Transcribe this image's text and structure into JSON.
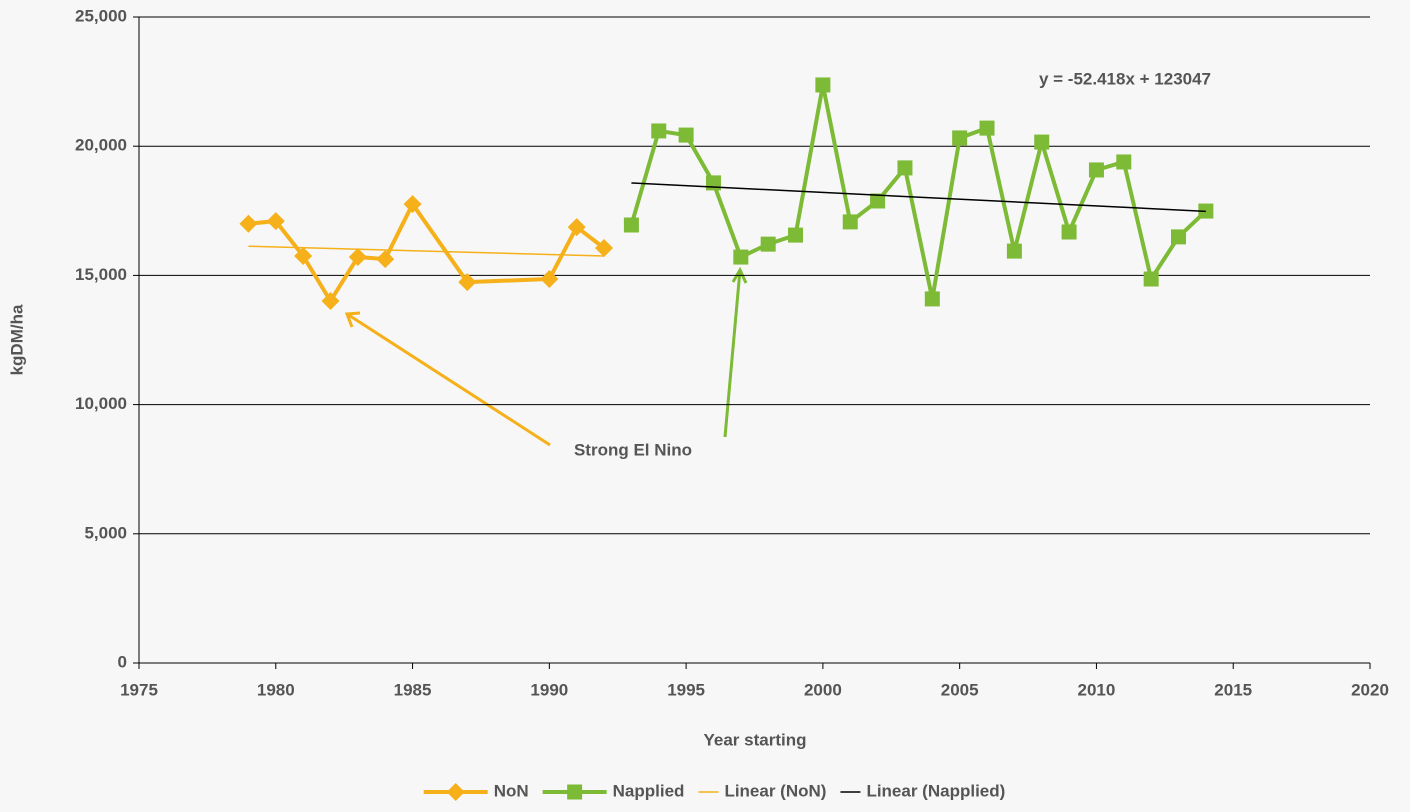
{
  "chart_data": {
    "type": "line",
    "x_label": "Year starting",
    "y_label": "kgDM/ha",
    "xlim": [
      1975,
      2020
    ],
    "ylim": [
      0,
      25000
    ],
    "xticks": [
      1975,
      1980,
      1985,
      1990,
      1995,
      2000,
      2005,
      2010,
      2015,
      2020
    ],
    "yticks": [
      0,
      {
        "value": 5000,
        "label": "5,000"
      },
      {
        "value": 10000,
        "label": "10,000"
      },
      {
        "value": 15000,
        "label": "15,000"
      },
      {
        "value": 20000,
        "label": "20,000"
      },
      {
        "value": 25000,
        "label": "25,000"
      }
    ],
    "grid": true,
    "legend": "bottom",
    "series": [
      {
        "name": "NoN",
        "color": "#f5b01a",
        "marker": "diamond",
        "x": [
          1979,
          1980,
          1981,
          1982,
          1983,
          1984,
          1985,
          1987,
          1990,
          1991,
          1992
        ],
        "values": [
          17000,
          17100,
          15750,
          14010,
          15710,
          15630,
          17760,
          14740,
          14860,
          16870,
          16060
        ]
      },
      {
        "name": "Napplied",
        "color": "#7dba35",
        "marker": "square",
        "x": [
          1993,
          1994,
          1995,
          1996,
          1997,
          1998,
          1999,
          2000,
          2001,
          2002,
          2003,
          2004,
          2005,
          2006,
          2007,
          2008,
          2009,
          2010,
          2011,
          2012,
          2013,
          2014
        ],
        "values": [
          16950,
          20590,
          20430,
          18580,
          15710,
          16210,
          16560,
          22370,
          17070,
          17880,
          19160,
          14090,
          20320,
          20700,
          15940,
          20160,
          16680,
          19080,
          19390,
          14860,
          16490,
          17490
        ]
      },
      {
        "name": "Linear (NoN)",
        "color": "#f5b01a",
        "marker": "none",
        "x": [
          1979,
          1992
        ],
        "values": [
          16130,
          15750
        ]
      },
      {
        "name": "Linear (Napplied)",
        "color": "#000000",
        "marker": "none",
        "x": [
          1993,
          2014
        ],
        "values": [
          18578,
          17478
        ]
      }
    ],
    "annotations": [
      {
        "text": "y = -52.418x + 123047"
      },
      {
        "text": "Strong El Nino"
      }
    ]
  }
}
